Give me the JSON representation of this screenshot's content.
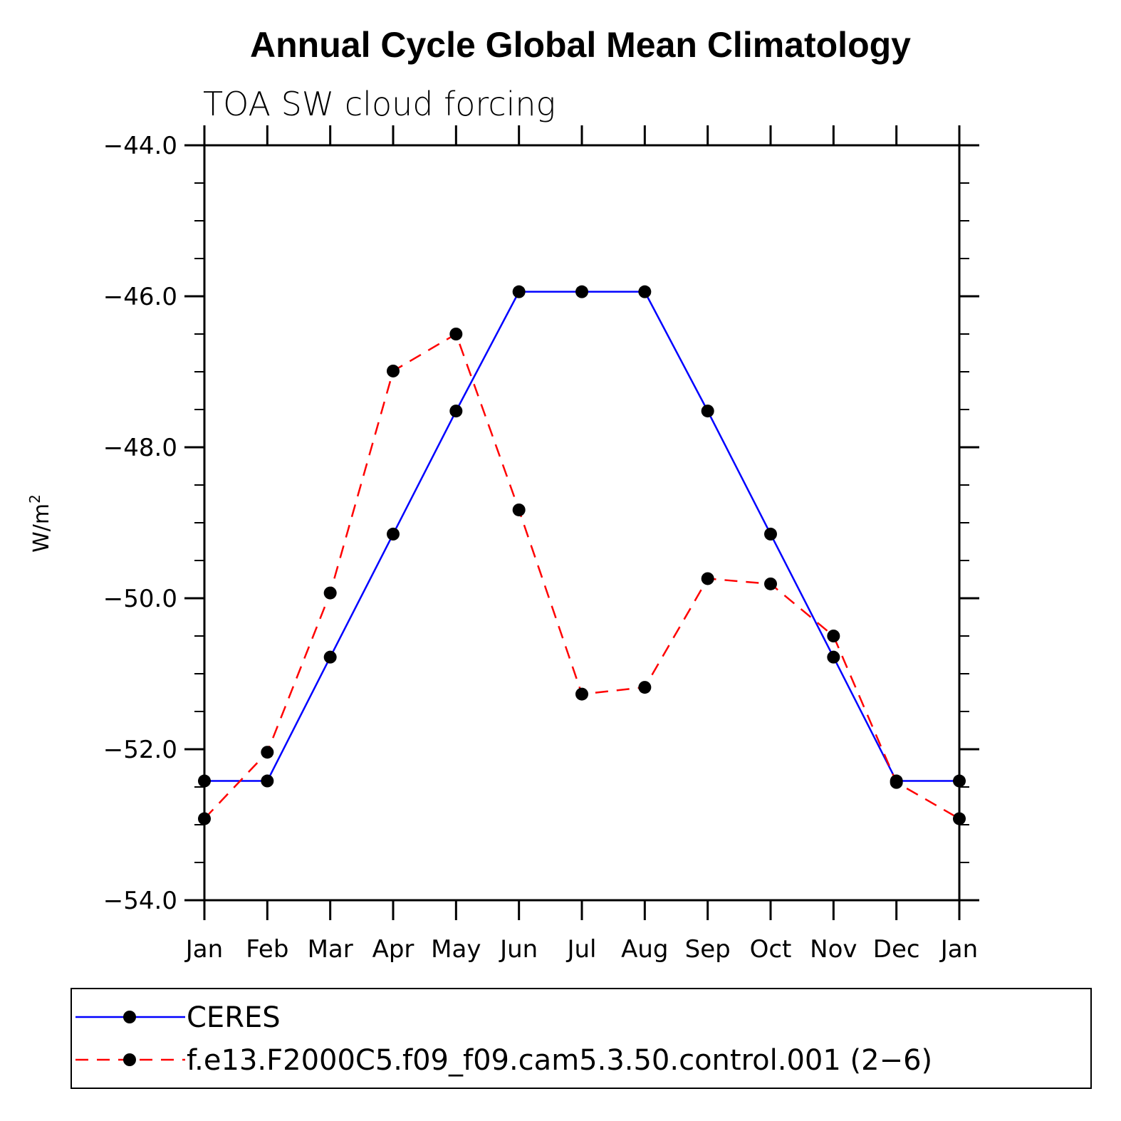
{
  "chart_data": {
    "type": "line",
    "title": "Annual Cycle Global Mean Climatology",
    "subtitle": "TOA SW cloud forcing",
    "ylabel": "W/m",
    "ylabel_superscript": "2",
    "xlabel": "",
    "categories": [
      "Jan",
      "Feb",
      "Mar",
      "Apr",
      "May",
      "Jun",
      "Jul",
      "Aug",
      "Sep",
      "Oct",
      "Nov",
      "Dec",
      "Jan"
    ],
    "ylim": [
      -54.0,
      -44.0
    ],
    "yticks": [
      -54.0,
      -52.0,
      -50.0,
      -48.0,
      -46.0,
      -44.0
    ],
    "ytick_labels": [
      "−54.0",
      "−52.0",
      "−50.0",
      "−48.0",
      "−46.0",
      "−44.0"
    ],
    "yminor_step": 0.5,
    "grid": false,
    "legend_position": "bottom",
    "series": [
      {
        "name": "CERES",
        "color": "#0000ff",
        "dash": "solid",
        "values": [
          -52.42,
          -52.42,
          -50.78,
          -49.15,
          -47.52,
          -45.94,
          -45.94,
          -45.94,
          -47.52,
          -49.15,
          -50.78,
          -52.42,
          -52.42
        ]
      },
      {
        "name": "f.e13.F2000C5.f09_f09.cam5.3.50.control.001 (2−6)",
        "color": "#ff0000",
        "dash": "dashed",
        "values": [
          -52.92,
          -52.04,
          -49.93,
          -46.99,
          -46.5,
          -48.83,
          -51.27,
          -51.18,
          -49.74,
          -49.81,
          -50.5,
          -52.44,
          -52.92
        ]
      }
    ]
  }
}
